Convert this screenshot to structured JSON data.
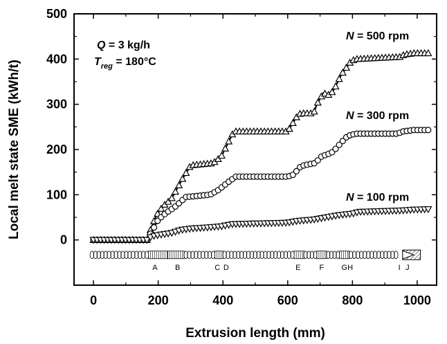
{
  "chart_data": {
    "type": "line",
    "xlabel": "Extrusion length (mm)",
    "ylabel": "Local melt state SME (kWh/t)",
    "xlim": [
      -60,
      1060
    ],
    "ylim": [
      -100,
      500
    ],
    "x_ticks": [
      "0",
      "200",
      "400",
      "600",
      "800",
      "1000"
    ],
    "y_ticks": [
      "0",
      "100",
      "200",
      "300",
      "400",
      "500"
    ],
    "annotation": {
      "q_symbol": "Q",
      "q_value": " = 3 kg/h",
      "t_symbol": "T",
      "t_sub": "reg",
      "t_value": " = 180°C"
    },
    "series": [
      {
        "name": "N = 500 rpm",
        "label_symbol": "N",
        "label_value": " = 500 rpm",
        "marker": "triangle-up",
        "points": [
          [
            0,
            0
          ],
          [
            165,
            0
          ],
          [
            180,
            30
          ],
          [
            195,
            55
          ],
          [
            215,
            75
          ],
          [
            240,
            90
          ],
          [
            275,
            135
          ],
          [
            300,
            165
          ],
          [
            370,
            170
          ],
          [
            395,
            185
          ],
          [
            430,
            235
          ],
          [
            440,
            240
          ],
          [
            600,
            240
          ],
          [
            630,
            275
          ],
          [
            640,
            280
          ],
          [
            680,
            280
          ],
          [
            690,
            300
          ],
          [
            710,
            325
          ],
          [
            730,
            320
          ],
          [
            745,
            335
          ],
          [
            765,
            365
          ],
          [
            795,
            395
          ],
          [
            810,
            400
          ],
          [
            950,
            405
          ],
          [
            960,
            410
          ],
          [
            990,
            413
          ],
          [
            1040,
            413
          ]
        ]
      },
      {
        "name": "N = 300 rpm",
        "label_symbol": "N",
        "label_value": " = 300 rpm",
        "marker": "circle",
        "points": [
          [
            0,
            0
          ],
          [
            165,
            0
          ],
          [
            185,
            25
          ],
          [
            200,
            45
          ],
          [
            225,
            60
          ],
          [
            255,
            75
          ],
          [
            285,
            95
          ],
          [
            360,
            100
          ],
          [
            385,
            110
          ],
          [
            420,
            130
          ],
          [
            440,
            140
          ],
          [
            600,
            140
          ],
          [
            620,
            145
          ],
          [
            635,
            160
          ],
          [
            650,
            165
          ],
          [
            685,
            170
          ],
          [
            705,
            185
          ],
          [
            725,
            190
          ],
          [
            740,
            195
          ],
          [
            765,
            215
          ],
          [
            785,
            230
          ],
          [
            810,
            235
          ],
          [
            940,
            235
          ],
          [
            955,
            240
          ],
          [
            990,
            243
          ],
          [
            1040,
            243
          ]
        ]
      },
      {
        "name": "N = 100 rpm",
        "label_symbol": "N",
        "label_value": " = 100 rpm",
        "marker": "triangle-down",
        "points": [
          [
            0,
            0
          ],
          [
            165,
            0
          ],
          [
            180,
            8
          ],
          [
            210,
            12
          ],
          [
            240,
            15
          ],
          [
            270,
            22
          ],
          [
            300,
            25
          ],
          [
            360,
            28
          ],
          [
            395,
            30
          ],
          [
            430,
            35
          ],
          [
            600,
            38
          ],
          [
            630,
            42
          ],
          [
            680,
            45
          ],
          [
            720,
            50
          ],
          [
            760,
            55
          ],
          [
            800,
            58
          ],
          [
            820,
            62
          ],
          [
            950,
            65
          ],
          [
            990,
            67
          ],
          [
            1040,
            68
          ]
        ]
      }
    ],
    "zones": {
      "y_value": -33,
      "letters": [
        {
          "label": "A",
          "x": 190
        },
        {
          "label": "B",
          "x": 260
        },
        {
          "label": "C",
          "x": 383
        },
        {
          "label": "D",
          "x": 410
        },
        {
          "label": "E",
          "x": 632
        },
        {
          "label": "F",
          "x": 705
        },
        {
          "label": "G",
          "x": 775
        },
        {
          "label": "H",
          "x": 793
        },
        {
          "label": "I",
          "x": 945
        },
        {
          "label": "J",
          "x": 970
        }
      ],
      "segments": [
        {
          "kind": "circles",
          "from": -10,
          "to": 170
        },
        {
          "kind": "hatch",
          "from": 170,
          "to": 230
        },
        {
          "kind": "hatch",
          "from": 230,
          "to": 280
        },
        {
          "kind": "circles",
          "from": 280,
          "to": 375
        },
        {
          "kind": "hatch",
          "from": 375,
          "to": 400
        },
        {
          "kind": "circles",
          "from": 400,
          "to": 620
        },
        {
          "kind": "hatch",
          "from": 620,
          "to": 650
        },
        {
          "kind": "circles",
          "from": 650,
          "to": 690
        },
        {
          "kind": "hatch",
          "from": 690,
          "to": 720
        },
        {
          "kind": "circles",
          "from": 720,
          "to": 760
        },
        {
          "kind": "hatch",
          "from": 760,
          "to": 790
        },
        {
          "kind": "circles",
          "from": 790,
          "to": 940
        },
        {
          "kind": "die",
          "from": 955,
          "to": 1010
        }
      ]
    }
  }
}
